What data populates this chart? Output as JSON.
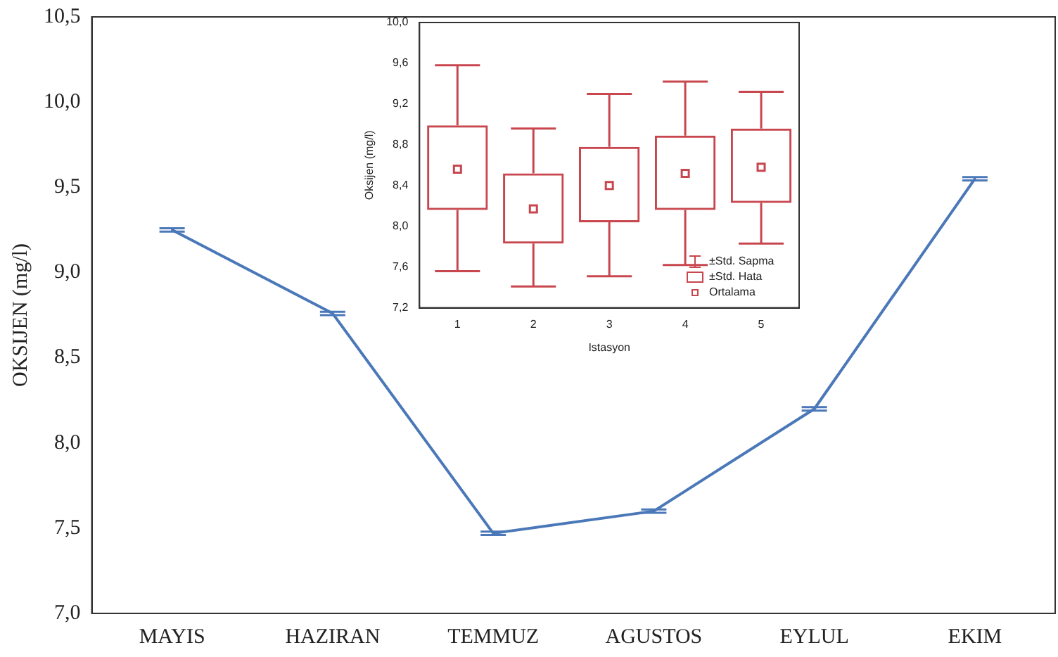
{
  "chart_data": [
    {
      "type": "line",
      "ylabel": "OKSIJEN (mg/l)",
      "categories": [
        "MAYIS",
        "HAZIRAN",
        "TEMMUZ",
        "AGUSTOS",
        "EYLUL",
        "EKIM"
      ],
      "series": [
        {
          "color": "#4a78b8",
          "values": [
            9.25,
            8.76,
            7.47,
            7.6,
            8.2,
            9.55
          ],
          "errors": [
            0.01,
            0.01,
            0.01,
            0.01,
            0.01,
            0.01
          ]
        }
      ],
      "ylim": [
        7,
        10.5
      ],
      "yticks": [
        {
          "value": 7,
          "label": "7,0"
        },
        {
          "value": 7.5,
          "label": "7,5"
        },
        {
          "value": 8,
          "label": "8,0"
        },
        {
          "value": 8.5,
          "label": "8,5"
        },
        {
          "value": 9,
          "label": "9,0"
        },
        {
          "value": 9.5,
          "label": "9,5"
        },
        {
          "value": 10,
          "label": "10,0"
        },
        {
          "value": 10.5,
          "label": "10,5"
        }
      ],
      "grid": false
    },
    {
      "type": "box",
      "xlabel": "Istasyon",
      "ylabel": "Oksijen (mg/l)",
      "categories": [
        "1",
        "2",
        "3",
        "4",
        "5"
      ],
      "series": [
        {
          "color": "#c8464e",
          "boxes": [
            {
              "low": 7.56,
              "q1": 8.16,
              "median": 8.56,
              "q3": 8.99,
              "high": 9.58
            },
            {
              "low": 7.41,
              "q1": 7.83,
              "median": 8.17,
              "q3": 8.52,
              "high": 8.96
            },
            {
              "low": 7.51,
              "q1": 8.04,
              "median": 8.4,
              "q3": 8.78,
              "high": 9.3
            },
            {
              "low": 7.62,
              "q1": 8.16,
              "median": 8.52,
              "q3": 8.89,
              "high": 9.42
            },
            {
              "low": 7.83,
              "q1": 8.23,
              "median": 8.58,
              "q3": 8.96,
              "high": 9.32
            }
          ]
        }
      ],
      "ylim": [
        7.2,
        10
      ],
      "yticks": [
        {
          "value": 7.2,
          "label": "7,2"
        },
        {
          "value": 7.6,
          "label": "7,6"
        },
        {
          "value": 8,
          "label": "8,0"
        },
        {
          "value": 8.4,
          "label": "8,4"
        },
        {
          "value": 8.8,
          "label": "8,8"
        },
        {
          "value": 9.2,
          "label": "9,2"
        },
        {
          "value": 9.6,
          "label": "9,6"
        },
        {
          "value": 10,
          "label": "10,0"
        }
      ],
      "annotations": [
        "±Std. Sapma",
        "±Std. Hata",
        "Ortalama"
      ],
      "grid": false
    }
  ]
}
